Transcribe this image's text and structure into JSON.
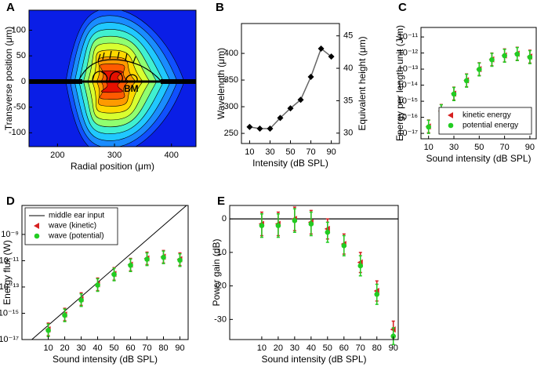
{
  "chart_data": [
    {
      "panel": "A",
      "type": "contour",
      "annotation": "BM",
      "xlabel": "Radial position (μm)",
      "ylabel": "Transverse position (μm)",
      "xlim": [
        150,
        443
      ],
      "ylim": [
        -127,
        139
      ],
      "xticks": [
        200,
        300,
        400
      ],
      "yticks": [
        -100,
        -50,
        0,
        50,
        100
      ]
    },
    {
      "panel": "B",
      "type": "line",
      "xlabel": "Intensity (dB SPL)",
      "ylabel": "Wavelength (μm)",
      "y2label": "Equivalent height (μm)",
      "x": [
        10,
        20,
        30,
        40,
        50,
        60,
        70,
        80,
        90
      ],
      "series": [
        {
          "color": "#000000",
          "marker": "diamond",
          "values": [
            262,
            259,
            259,
            279,
            297,
            313,
            356,
            409,
            394
          ]
        }
      ],
      "xlim": [
        2,
        98
      ],
      "ylim": [
        231,
        456
      ],
      "xticks": [
        10,
        30,
        50,
        70,
        90
      ],
      "yticks": [
        250,
        300,
        350,
        400
      ],
      "y2lim": [
        28.4,
        46.9
      ],
      "y2ticks": [
        30,
        35,
        40,
        45
      ]
    },
    {
      "panel": "C",
      "type": "scatter",
      "ylog": true,
      "legend": "lower right",
      "xlabel": "Sound intensity (dB SPL)",
      "ylabel": "Energy per length unit (J/m)",
      "x": [
        10,
        20,
        30,
        40,
        50,
        60,
        70,
        80,
        90
      ],
      "series": [
        {
          "name": "kinetic energy",
          "color": "#d62020",
          "marker": "triangle",
          "values": [
            2.7e-17,
            2.5e-16,
            3e-15,
            2e-14,
            1e-13,
            4e-13,
            7e-13,
            9e-13,
            6e-13
          ],
          "lower": [
            1.1e-17,
            1e-16,
            1.2e-15,
            8e-15,
            4e-14,
            1.6e-13,
            2.8e-13,
            3.6e-13,
            2.4e-13
          ],
          "upper": [
            6.8e-17,
            6.3e-16,
            7.5e-15,
            5e-14,
            2.5e-13,
            1e-12,
            1.8e-12,
            2.3e-12,
            1.5e-12
          ]
        },
        {
          "name": "potential energy",
          "color": "#22cc22",
          "marker": "circle",
          "values": [
            2.5e-17,
            2.3e-16,
            2.8e-15,
            1.9e-14,
            9.5e-14,
            3.8e-13,
            6.8e-13,
            8.5e-13,
            5.5e-13
          ],
          "lower": [
            1e-17,
            9e-17,
            1.1e-15,
            7.5e-15,
            3.8e-14,
            1.5e-13,
            2.7e-13,
            3.4e-13,
            2.2e-13
          ],
          "upper": [
            6.5e-17,
            6e-16,
            7.2e-15,
            4.8e-14,
            2.4e-13,
            9.6e-13,
            1.7e-12,
            2.2e-12,
            1.4e-12
          ]
        }
      ],
      "xlim": [
        4,
        95
      ],
      "ylim": [
        4.6e-18,
        3.9e-11
      ],
      "xticks": [
        10,
        30,
        50,
        70,
        90
      ],
      "yticks": [
        {
          "value": 1e-11,
          "label": "10⁻¹¹"
        },
        {
          "value": 1e-12,
          "label": "10⁻¹²"
        },
        {
          "value": 1e-13,
          "label": "10⁻¹³"
        },
        {
          "value": 1e-14,
          "label": "10⁻¹⁴"
        },
        {
          "value": 1e-15,
          "label": "10⁻¹⁵"
        },
        {
          "value": 1e-16,
          "label": "10⁻¹⁶"
        },
        {
          "value": 1e-17,
          "label": "10⁻¹⁷"
        }
      ]
    },
    {
      "panel": "D",
      "type": "scatter",
      "ylog": true,
      "legend": "upper left",
      "xlabel": "Sound intensity (dB SPL)",
      "ylabel": "Energy flux (W)",
      "x": [
        10,
        20,
        30,
        40,
        50,
        60,
        70,
        80,
        90
      ],
      "series": [
        {
          "name": "middle ear input",
          "color": "#000000",
          "marker": "none",
          "x": [
            0,
            94
          ],
          "values": [
            1e-17,
            1.6e-07
          ]
        },
        {
          "name": "wave (kinetic)",
          "color": "#d62020",
          "marker": "triangle",
          "values": [
            6e-17,
            8e-16,
            1.2e-14,
            1.6e-13,
            1e-12,
            5e-12,
            1.5e-11,
            2e-11,
            1.3e-11
          ],
          "lower": [
            2e-17,
            2.7e-16,
            4e-15,
            5.3e-14,
            3.3e-13,
            1.7e-12,
            5e-12,
            6.7e-12,
            4.3e-12
          ],
          "upper": [
            1.8e-16,
            2.4e-15,
            3.6e-14,
            4.8e-13,
            3e-12,
            1.5e-11,
            4.5e-11,
            6e-11,
            3.9e-11
          ]
        },
        {
          "name": "wave (potential)",
          "color": "#22cc22",
          "marker": "circle",
          "values": [
            5e-17,
            7e-16,
            1e-14,
            1.4e-13,
            9e-13,
            4.5e-12,
            1.3e-11,
            1.8e-11,
            1.1e-11
          ],
          "lower": [
            1.7e-17,
            2.3e-16,
            3.3e-15,
            4.7e-14,
            3e-13,
            1.5e-12,
            4.3e-12,
            6e-12,
            3.7e-12
          ],
          "upper": [
            1.5e-16,
            2.1e-15,
            3e-14,
            4.2e-13,
            2.7e-12,
            1.35e-11,
            3.9e-11,
            5.4e-11,
            3.3e-11
          ]
        }
      ],
      "xlim": [
        -6,
        95
      ],
      "ylim": [
        1e-17,
        1.6e-07
      ],
      "xticks": [
        10,
        20,
        30,
        40,
        50,
        60,
        70,
        80,
        90
      ],
      "yticks": [
        {
          "value": 1e-09,
          "label": "10⁻⁹"
        },
        {
          "value": 1e-11,
          "label": "10⁻¹¹"
        },
        {
          "value": 1e-13,
          "label": "10⁻¹³"
        },
        {
          "value": 1e-15,
          "label": "10⁻¹⁵"
        },
        {
          "value": 1e-17,
          "label": "10⁻¹⁷"
        }
      ]
    },
    {
      "panel": "E",
      "type": "scatter",
      "reference_line": 0,
      "xlabel": "Sound intensity (dB SPL)",
      "ylabel": "Power gain (dB)",
      "x": [
        10,
        20,
        30,
        40,
        50,
        60,
        70,
        80,
        90
      ],
      "series": [
        {
          "color": "#d62020",
          "marker": "triangle",
          "values": [
            -1.5,
            -1.5,
            0,
            -1,
            -3,
            -7.5,
            -13,
            -21.5,
            -33
          ],
          "errors": [
            3.5,
            3.5,
            3.5,
            3.5,
            3,
            3,
            3,
            3,
            2.5
          ]
        },
        {
          "color": "#22cc22",
          "marker": "circle",
          "values": [
            -2,
            -2,
            -0.5,
            -1.5,
            -4,
            -8,
            -14,
            -22.5,
            -35
          ],
          "errors": [
            3.5,
            3.5,
            3.5,
            3.5,
            3,
            3,
            3,
            3,
            2.5
          ]
        }
      ],
      "xlim": [
        -9.5,
        93
      ],
      "ylim": [
        -36,
        4
      ],
      "xticks": [
        10,
        20,
        30,
        40,
        50,
        60,
        70,
        80,
        90
      ],
      "yticks": [
        0,
        -10,
        -20,
        -30
      ]
    }
  ]
}
